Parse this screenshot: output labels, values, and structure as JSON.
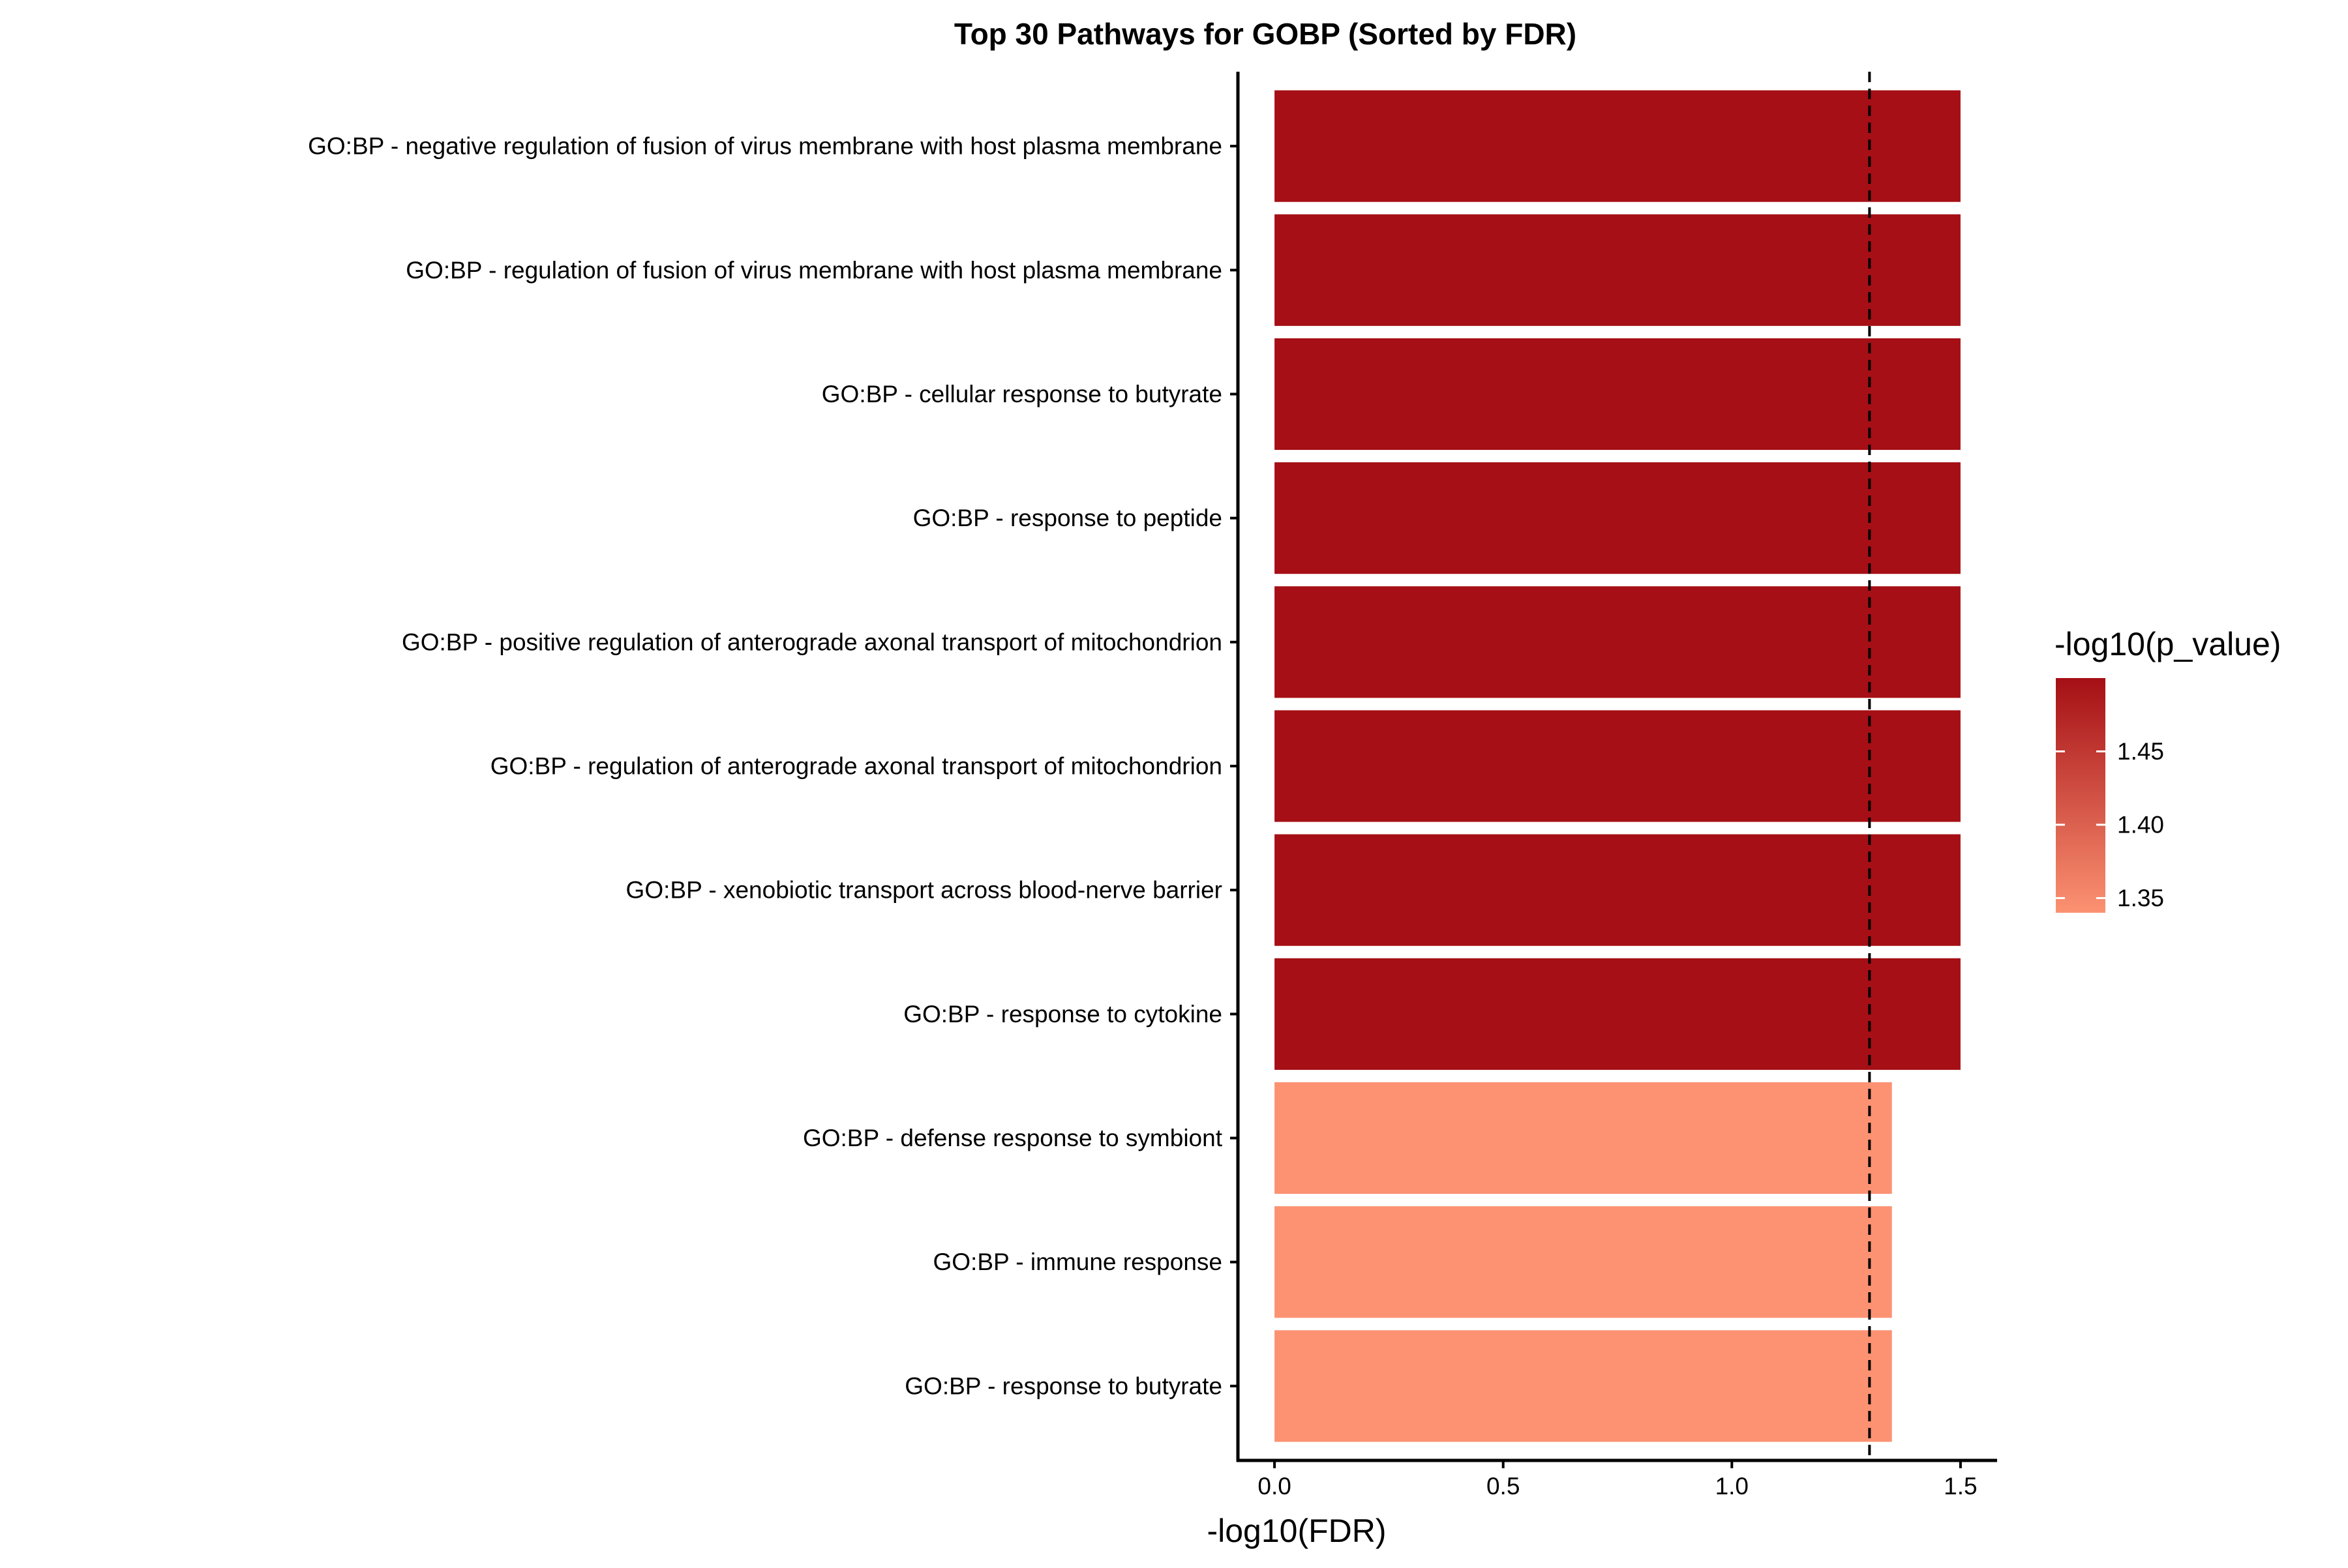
{
  "chart_data": {
    "type": "bar",
    "orientation": "horizontal",
    "title": "Top 30 Pathways for GOBP (Sorted by FDR)",
    "xlabel": "-log10(FDR)",
    "ylabel": "",
    "xlim": [
      -0.08,
      1.58
    ],
    "x_ticks": [
      {
        "value": 0.0,
        "label": "0.0"
      },
      {
        "value": 0.5,
        "label": "0.5"
      },
      {
        "value": 1.0,
        "label": "1.0"
      },
      {
        "value": 1.5,
        "label": "1.5"
      }
    ],
    "threshold_line": {
      "value": 1.301,
      "style": "dashed",
      "color": "#000000"
    },
    "grid": false,
    "categories": [
      "GO:BP - negative regulation of fusion of virus membrane with host plasma membrane",
      "GO:BP - regulation of fusion of virus membrane with host plasma membrane",
      "GO:BP - cellular response to butyrate",
      "GO:BP - response to peptide",
      "GO:BP - positive regulation of anterograde axonal transport of mitochondrion",
      "GO:BP - regulation of anterograde axonal transport of mitochondrion",
      "GO:BP - xenobiotic transport across blood-nerve barrier",
      "GO:BP - response to cytokine",
      "GO:BP - defense response to symbiont",
      "GO:BP - immune response",
      "GO:BP - response to butyrate"
    ],
    "values": [
      1.5,
      1.5,
      1.5,
      1.5,
      1.5,
      1.5,
      1.5,
      1.5,
      1.35,
      1.35,
      1.35
    ],
    "color_values": [
      1.5,
      1.5,
      1.5,
      1.5,
      1.5,
      1.5,
      1.5,
      1.5,
      1.34,
      1.34,
      1.34
    ],
    "color_scale": {
      "title": "-log10(p_value)",
      "range": [
        1.34,
        1.5
      ],
      "low_color": "#FC9272",
      "high_color": "#A50F15",
      "ticks": [
        {
          "value": 1.35,
          "label": "1.35"
        },
        {
          "value": 1.4,
          "label": "1.40"
        },
        {
          "value": 1.45,
          "label": "1.45"
        }
      ],
      "legend_position": "right"
    }
  }
}
